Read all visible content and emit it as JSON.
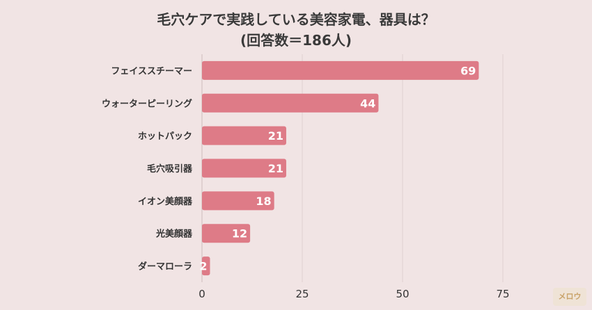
{
  "chart_data": {
    "type": "bar",
    "orientation": "horizontal",
    "title_line1": "毛穴ケアで実践している美容家電、器具は？",
    "title_line2": "(回答数＝186人)",
    "categories": [
      "フェイススチーマー",
      "ウォーターピーリング",
      "ホットパック",
      "毛穴吸引器",
      "イオン美顔器",
      "光美顔器",
      "ダーマローラ"
    ],
    "values": [
      69,
      44,
      21,
      21,
      18,
      12,
      2
    ],
    "xticks": [
      0,
      25,
      50,
      75
    ],
    "xlim": [
      0,
      75
    ],
    "xlabel": "",
    "ylabel": "",
    "grid": true,
    "bar_color": "#de7b87"
  },
  "logo_text": "メロウ"
}
